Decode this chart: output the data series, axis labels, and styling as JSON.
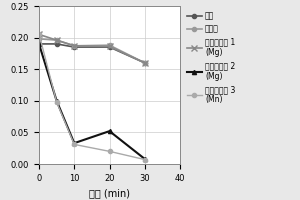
{
  "x": [
    0,
    5,
    10,
    20,
    30
  ],
  "series_order": [
    "裸板",
    "电涂板",
    "结构化陶瓷 1\n(Mg)",
    "结构化陶瓷 2\n(Mg)",
    "结构化陶瓷 3\n(Mn)"
  ],
  "series": {
    "裸板": {
      "y": [
        0.19,
        0.19,
        0.185,
        0.185,
        0.16
      ],
      "color": "#555555",
      "marker": "o",
      "linestyle": "-",
      "linewidth": 1.2,
      "markersize": 3
    },
    "电涂板": {
      "y": [
        0.198,
        0.196,
        0.187,
        0.188,
        0.16
      ],
      "color": "#999999",
      "marker": "o",
      "linestyle": "-",
      "linewidth": 1.2,
      "markersize": 3
    },
    "结构化陶瓷 1\n(Mg)": {
      "y": [
        0.205,
        0.196,
        0.187,
        0.186,
        0.16
      ],
      "color": "#888888",
      "marker": "x",
      "linestyle": "-",
      "linewidth": 1.2,
      "markersize": 4
    },
    "结构化陶瓷 2\n(Mg)": {
      "y": [
        0.19,
        0.1,
        0.033,
        0.052,
        0.008
      ],
      "color": "#111111",
      "marker": "^",
      "linestyle": "-",
      "linewidth": 1.5,
      "markersize": 3
    },
    "结构化陶瓷 3\n(Mn)": {
      "y": [
        0.206,
        0.098,
        0.031,
        0.02,
        0.007
      ],
      "color": "#aaaaaa",
      "marker": "o",
      "linestyle": "-",
      "linewidth": 1.0,
      "markersize": 3
    }
  },
  "xlabel": "时间 (min)",
  "ylim": [
    0,
    0.25
  ],
  "xlim": [
    0,
    40
  ],
  "xticks": [
    0,
    10,
    20,
    30,
    40
  ],
  "yticks": [
    0,
    0.05,
    0.1,
    0.15,
    0.2,
    0.25
  ],
  "background_color": "#e8e8e8",
  "plot_bg_color": "#ffffff",
  "grid_color": "#cccccc",
  "xlabel_fontsize": 7,
  "tick_fontsize": 6,
  "legend_fontsize": 5.5
}
